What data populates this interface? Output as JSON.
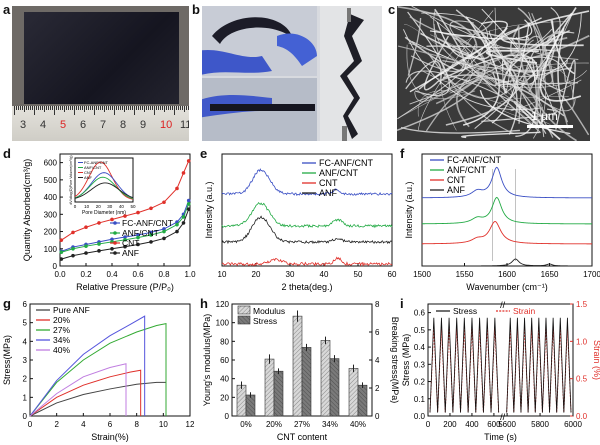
{
  "panel_letters": {
    "a": "a",
    "b": "b",
    "c": "c",
    "d": "d",
    "e": "e",
    "f": "f",
    "g": "g",
    "h": "h",
    "i": "i"
  },
  "photo_a": {
    "ruler_numbers": [
      "3",
      "4",
      "5",
      "6",
      "7",
      "8",
      "9",
      "10",
      "11"
    ],
    "highlighted": [
      "5",
      "10"
    ]
  },
  "photo_c": {
    "scale_bar": "1 μm"
  },
  "colors": {
    "black": "#222222",
    "green": "#22aa44",
    "red": "#e0302a",
    "blue": "#3a4fc4",
    "g_black": "#444444",
    "g_red": "#e0302a",
    "g_green": "#33aa33",
    "g_blue": "#5555dd",
    "g_violet": "#c07ee0"
  },
  "chart_data": [
    {
      "panel": "d",
      "type": "scatter",
      "xlabel": "Relative Pressure (P/P₀)",
      "ylabel": "Quantity Absorbed(cm³/g)",
      "xlim": [
        0,
        1.0
      ],
      "ylim": [
        0,
        650
      ],
      "xticks": [
        "0.0",
        "0.2",
        "0.4",
        "0.6",
        "0.8",
        "1.0"
      ],
      "yticks": [
        "0",
        "100",
        "200",
        "300",
        "400",
        "500",
        "600"
      ],
      "legend": [
        "FC-ANF/CNT",
        "ANF/CNT",
        "CNT",
        "ANF"
      ],
      "series": [
        {
          "name": "FC-ANF/CNT",
          "x": [
            0.01,
            0.1,
            0.2,
            0.3,
            0.4,
            0.5,
            0.6,
            0.7,
            0.8,
            0.9,
            0.95,
            0.99
          ],
          "y": [
            85,
            110,
            125,
            140,
            155,
            168,
            180,
            195,
            215,
            255,
            300,
            380
          ]
        },
        {
          "name": "ANF/CNT",
          "x": [
            0.01,
            0.1,
            0.2,
            0.3,
            0.4,
            0.5,
            0.6,
            0.7,
            0.8,
            0.9,
            0.95,
            0.99
          ],
          "y": [
            80,
            100,
            115,
            128,
            140,
            152,
            165,
            180,
            200,
            240,
            285,
            360
          ]
        },
        {
          "name": "CNT",
          "x": [
            0.01,
            0.1,
            0.2,
            0.3,
            0.4,
            0.5,
            0.6,
            0.7,
            0.8,
            0.9,
            0.95,
            0.99
          ],
          "y": [
            150,
            195,
            225,
            250,
            270,
            290,
            310,
            335,
            370,
            450,
            540,
            610
          ]
        },
        {
          "name": "ANF",
          "x": [
            0.01,
            0.1,
            0.2,
            0.3,
            0.4,
            0.5,
            0.6,
            0.7,
            0.8,
            0.9,
            0.95,
            0.99
          ],
          "y": [
            40,
            60,
            75,
            88,
            100,
            112,
            125,
            140,
            160,
            200,
            250,
            330
          ]
        }
      ],
      "inset": {
        "xlabel": "Pore Diameter (nm)",
        "ylabel": "dV/dlog(D)Pore Volume(cm³/g)",
        "xticks": [
          "0",
          "10",
          "20",
          "30",
          "40",
          "50"
        ],
        "legend": [
          "FC-ANF/CNT",
          "ANF/CNT",
          "CNT",
          "ANF"
        ]
      }
    },
    {
      "panel": "e",
      "type": "line",
      "xlabel": "2 theta(deg.)",
      "ylabel": "Intensity (a.u.)",
      "xlim": [
        10,
        60
      ],
      "xticks": [
        "10",
        "20",
        "30",
        "40",
        "50",
        "60"
      ],
      "legend": [
        "FC-ANF/CNT",
        "ANF/CNT",
        "CNT",
        "ANF"
      ]
    },
    {
      "panel": "f",
      "type": "line",
      "xlabel": "Wavenumber (cm⁻¹)",
      "ylabel": "Intensity (a.u.)",
      "xlim": [
        1500,
        1700
      ],
      "xticks": [
        "1500",
        "1550",
        "1600",
        "1650",
        "1700"
      ],
      "legend": [
        "FC-ANF/CNT",
        "ANF/CNT",
        "CNT",
        "ANF"
      ]
    },
    {
      "panel": "g",
      "type": "line",
      "xlabel": "Strain(%)",
      "ylabel": "Stress(MPa)",
      "xlim": [
        0,
        12
      ],
      "ylim": [
        0,
        6
      ],
      "xticks": [
        "0",
        "2",
        "4",
        "6",
        "8",
        "10",
        "12"
      ],
      "yticks": [
        "0",
        "1",
        "2",
        "3",
        "4",
        "5",
        "6"
      ],
      "series": [
        {
          "name": "Pure ANF",
          "strain": [
            0,
            2,
            4,
            6,
            8,
            9.5,
            10.2
          ],
          "stress": [
            0,
            0.7,
            1.15,
            1.45,
            1.7,
            1.8,
            1.8
          ]
        },
        {
          "name": "20%",
          "strain": [
            0,
            2,
            4,
            6,
            7.5,
            8.3
          ],
          "stress": [
            0,
            1.0,
            1.65,
            2.1,
            2.35,
            2.45
          ]
        },
        {
          "name": "27%",
          "strain": [
            0,
            2,
            4,
            6,
            8,
            9.5,
            10.2
          ],
          "stress": [
            0,
            1.8,
            3.0,
            3.9,
            4.5,
            4.85,
            4.95
          ]
        },
        {
          "name": "34%",
          "strain": [
            0,
            2,
            4,
            6,
            7.5,
            8.6
          ],
          "stress": [
            0,
            1.9,
            3.3,
            4.3,
            4.9,
            5.35
          ]
        },
        {
          "name": "40%",
          "strain": [
            0,
            2,
            4,
            6,
            7.2
          ],
          "stress": [
            0,
            1.2,
            2.1,
            2.6,
            2.8
          ]
        }
      ]
    },
    {
      "panel": "h",
      "type": "bar",
      "categories": [
        "0%",
        "20%",
        "27%",
        "34%",
        "40%"
      ],
      "xlabel": "CNT content",
      "ylabel": "Young's modulus(MPa)",
      "y2label": "Breaking stress(MPa)",
      "ylim": [
        0,
        120
      ],
      "y2lim": [
        0,
        8
      ],
      "yticks": [
        "0",
        "20",
        "40",
        "60",
        "80",
        "100",
        "120"
      ],
      "y2ticks": [
        "0",
        "2",
        "4",
        "6",
        "8"
      ],
      "legend": [
        "Modulus",
        "Stress"
      ],
      "series": [
        {
          "name": "Modulus",
          "values": [
            33,
            61,
            107,
            81,
            51
          ],
          "errors": [
            4,
            5,
            6,
            4,
            4
          ]
        },
        {
          "name": "Stress",
          "values": [
            1.5,
            3.2,
            4.9,
            4.1,
            2.2
          ],
          "errors": [
            0.2,
            0.2,
            0.25,
            0.25,
            0.2
          ]
        }
      ]
    },
    {
      "panel": "i",
      "type": "line",
      "xlabel": "Time (s)",
      "ylabel": "Stress (MPa)",
      "y2label": "Strain (%)",
      "xticks": [
        "0",
        "200",
        "400",
        "600",
        "5600",
        "5800",
        "6000"
      ],
      "yticks": [
        "0.0",
        "0.1",
        "0.2",
        "0.3",
        "0.4",
        "0.5",
        "0.6"
      ],
      "y2ticks": [
        "0.0",
        "0.5",
        "1.0",
        "1.5"
      ],
      "ylim": [
        0,
        0.65
      ],
      "y2lim": [
        0,
        1.5
      ],
      "legend": [
        "Stress",
        "Strain"
      ],
      "stress_range": [
        0,
        0.57
      ],
      "strain_range": [
        0,
        1.2
      ],
      "cycles_per_segment": 9
    }
  ]
}
